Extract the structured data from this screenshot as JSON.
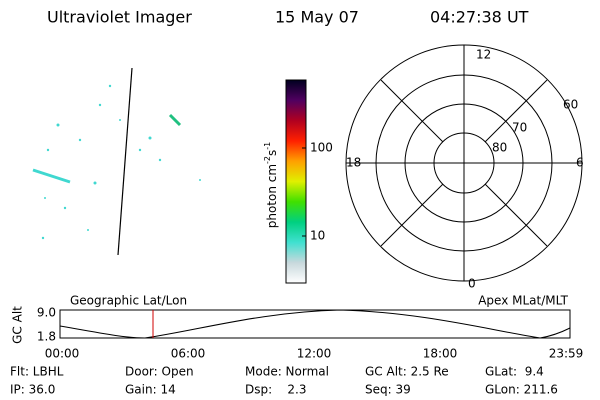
{
  "header": {
    "title": "Ultraviolet Imager",
    "date": "15 May 07",
    "time": "04:27:38 UT"
  },
  "colorbar": {
    "label": [
      "photon cm",
      "-2",
      "s",
      "-1"
    ],
    "ticks": [
      "100",
      "10"
    ]
  },
  "polar": {
    "mlt_labels": [
      "12",
      "18",
      "6",
      "0"
    ],
    "lat_labels": [
      "60",
      "70",
      "80"
    ]
  },
  "timeline": {
    "left_label": "Geographic Lat/Lon",
    "right_label": "Apex MLat/MLT",
    "axis_label": "GC Alt",
    "y_labels": [
      "9.0",
      "1.8"
    ],
    "x_labels": [
      "00:00",
      "06:00",
      "12:00",
      "18:00",
      "23:59"
    ]
  },
  "footer": {
    "rows": [
      [
        "Flt: LBHL",
        "Door: Open",
        "Mode: Normal",
        "GC Alt: 2.5 Re",
        "GLat:  9.4"
      ],
      [
        "IP: 36.0",
        "Gain: 14",
        "Dsp:    2.3",
        "Seq: 39",
        "GLon: 211.6"
      ]
    ]
  }
}
